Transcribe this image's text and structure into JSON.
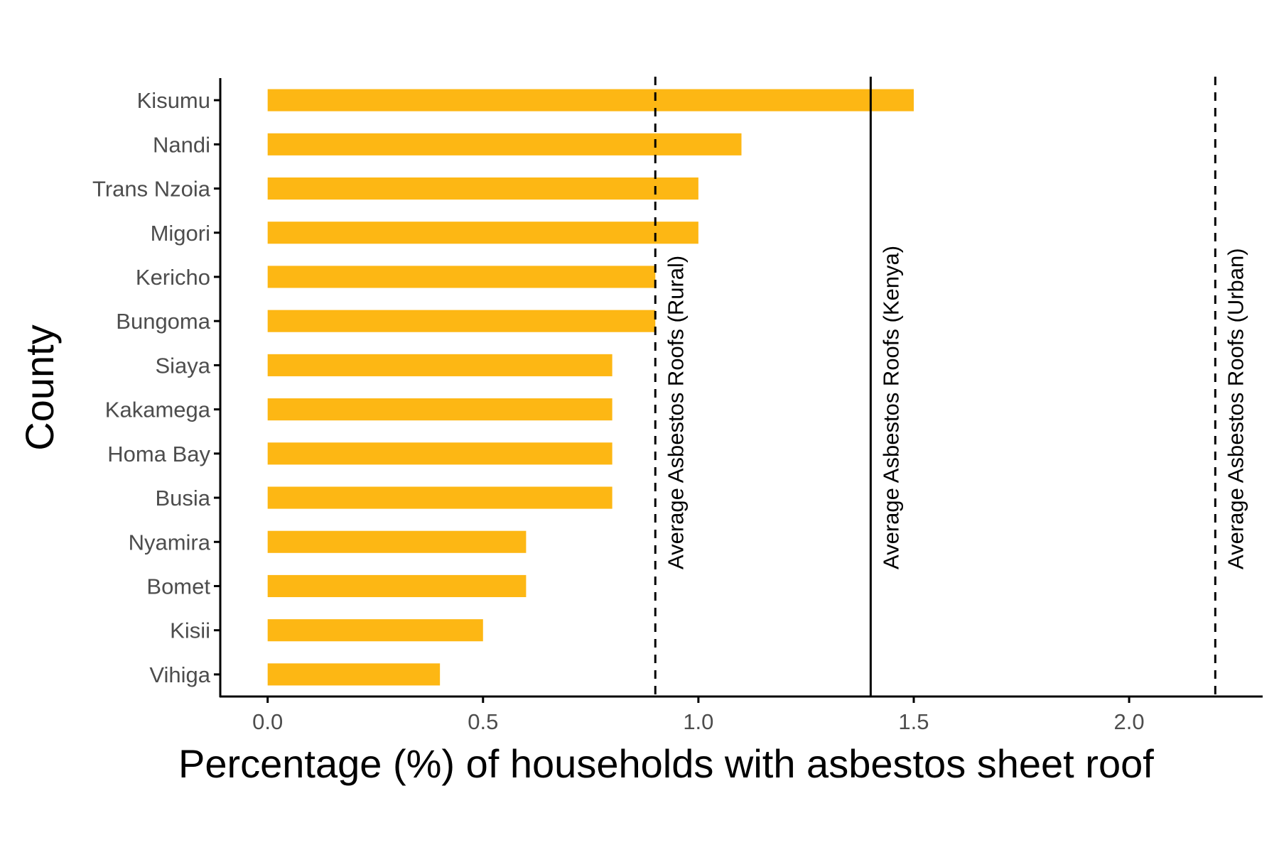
{
  "chart_data": {
    "type": "bar",
    "orientation": "horizontal",
    "title": "",
    "xlabel": "Percentage (%) of households with asbestos sheet roof",
    "ylabel": "County",
    "categories": [
      "Kisumu",
      "Nandi",
      "Trans Nzoia",
      "Migori",
      "Kericho",
      "Bungoma",
      "Siaya",
      "Kakamega",
      "Homa Bay",
      "Busia",
      "Nyamira",
      "Bomet",
      "Kisii",
      "Vihiga"
    ],
    "values": [
      1.5,
      1.1,
      1.0,
      1.0,
      0.9,
      0.9,
      0.8,
      0.8,
      0.8,
      0.8,
      0.6,
      0.6,
      0.5,
      0.4
    ],
    "xlim": [
      -0.11,
      2.31
    ],
    "xticks": [
      "0.0",
      "0.5",
      "1.0",
      "1.5",
      "2.0"
    ],
    "bar_color": "#FDB714",
    "grid": false,
    "legend": "none",
    "reference_lines": [
      {
        "value": 0.9,
        "style": "dashed",
        "label": "Average Asbestos Roofs (Rural)"
      },
      {
        "value": 1.4,
        "style": "solid",
        "label": "Average Asbestos Roofs (Kenya)"
      },
      {
        "value": 2.2,
        "style": "dashed",
        "label": "Average Asbestos Roofs (Urban)"
      }
    ]
  }
}
